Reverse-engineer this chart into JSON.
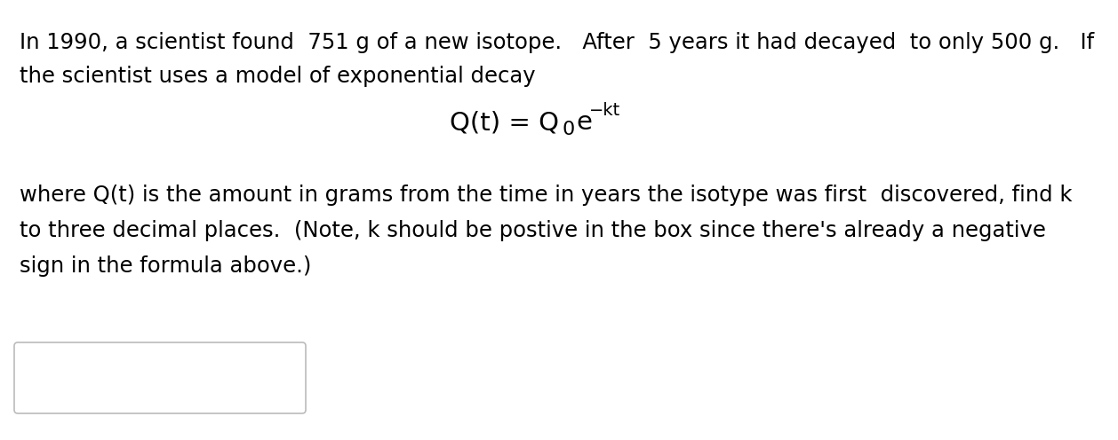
{
  "background_color": "#ffffff",
  "line1": "In 1990, a scientist found  751 g of a new isotope.   After  5 years it had decayed  to only 500 g.   If",
  "line2": "the scientist uses a model of exponential decay",
  "formula_main": "Q(t) = Q",
  "formula_sub": "0",
  "formula_exp_base": "e",
  "formula_exp_power": "-kt",
  "line3": "where Q(t) is the amount in grams from the time in years the isotype was first  discovered, find k",
  "line4": "to three decimal places.  (Note, k should be postive in the box since there's already a negative",
  "line5": "sign in the formula above.)",
  "font_size": 17.5,
  "formula_font_size": 21,
  "text_color": "#000000",
  "box_edge_color": "#bbbbbb"
}
